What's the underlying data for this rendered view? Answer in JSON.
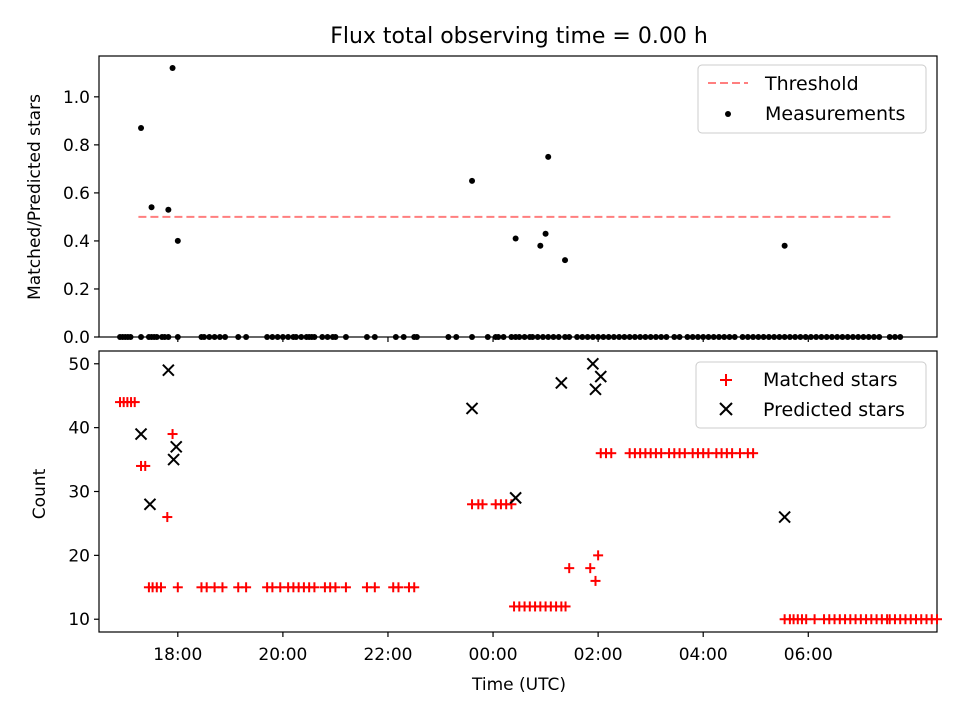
{
  "chart_data": [
    {
      "type": "scatter",
      "title": "Flux total observing time = 0.00 h",
      "xlabel": "",
      "ylabel": "Matched/Predicted stars",
      "xlim": [
        16.5,
        32.45
      ],
      "ylim": [
        0,
        1.17
      ],
      "yticks": [
        0.0,
        0.2,
        0.4,
        0.6,
        0.8,
        1.0
      ],
      "ytick_labels": [
        "0.0",
        "0.2",
        "0.4",
        "0.6",
        "0.8",
        "1.0"
      ],
      "xticks": [
        18,
        20,
        22,
        24,
        26,
        28,
        30
      ],
      "legend": [
        "Threshold",
        "Measurements"
      ],
      "legend_position": "top-right",
      "threshold": {
        "name": "Threshold",
        "y": 0.5,
        "x": [
          17.25,
          31.6
        ],
        "color": "#ff7f7f",
        "style": "dashed"
      },
      "series": [
        {
          "name": "Measurements",
          "color": "#000000",
          "x": [
            17.3,
            17.5,
            17.82,
            17.9,
            18.0,
            23.6,
            24.43,
            24.9,
            25.37,
            25.0,
            25.05,
            29.55
          ],
          "y": [
            0.87,
            0.54,
            0.53,
            1.12,
            0.4,
            0.65,
            0.41,
            0.38,
            0.32,
            0.43,
            0.75,
            0.38
          ]
        },
        {
          "name": "Measurements",
          "color": "#000000",
          "x": [
            16.9,
            16.95,
            17.0,
            17.05,
            17.1,
            17.3,
            17.45,
            17.5,
            17.55,
            17.6,
            17.7,
            17.75,
            17.82,
            18.0,
            18.45,
            18.5,
            18.6,
            18.7,
            18.8,
            18.9,
            19.15,
            19.3,
            19.7,
            19.8,
            19.9,
            20.0,
            20.1,
            20.2,
            20.25,
            20.35,
            20.45,
            20.5,
            20.55,
            20.6,
            20.75,
            20.85,
            20.95,
            21.0,
            21.2,
            21.6,
            21.75,
            22.15,
            22.3,
            22.5,
            22.55,
            23.15,
            23.3,
            23.6,
            23.9,
            24.05,
            24.1,
            24.2,
            24.35,
            24.43,
            24.5,
            24.6,
            24.7,
            24.75,
            24.85,
            24.95,
            25.05,
            25.15,
            25.25,
            25.37,
            25.45,
            25.6,
            25.7,
            25.8,
            25.9,
            26.0,
            26.1,
            26.2,
            26.3,
            26.4,
            26.5,
            26.6,
            26.7,
            26.8,
            26.9,
            27.0,
            27.1,
            27.2,
            27.3,
            27.45,
            27.55,
            27.7,
            27.8,
            27.9,
            28.0,
            28.1,
            28.2,
            28.3,
            28.4,
            28.5,
            28.6,
            28.75,
            28.85,
            28.95,
            29.05,
            29.15,
            29.25,
            29.35,
            29.45,
            29.55,
            29.65,
            29.75,
            29.85,
            29.95,
            30.05,
            30.15,
            30.25,
            30.35,
            30.45,
            30.55,
            30.65,
            30.75,
            30.85,
            30.95,
            31.05,
            31.15,
            31.25,
            31.35,
            31.55,
            31.65,
            31.75
          ],
          "y_value": 0.0
        }
      ]
    },
    {
      "type": "scatter",
      "title": "",
      "xlabel": "Time (UTC)",
      "ylabel": "Count",
      "xlim": [
        16.5,
        32.45
      ],
      "ylim": [
        8,
        52
      ],
      "yticks": [
        10,
        20,
        30,
        40,
        50
      ],
      "ytick_labels": [
        "10",
        "20",
        "30",
        "40",
        "50"
      ],
      "xticks": [
        18,
        20,
        22,
        24,
        26,
        28,
        30
      ],
      "xtick_labels": [
        "18:00",
        "20:00",
        "22:00",
        "00:00",
        "02:00",
        "04:00",
        "06:00"
      ],
      "legend": [
        "Matched stars",
        "Predicted stars"
      ],
      "legend_position": "top-right",
      "series": [
        {
          "name": "Matched stars",
          "marker": "+",
          "color": "#ff0000",
          "points": [
            [
              16.9,
              44
            ],
            [
              16.97,
              44
            ],
            [
              17.04,
              44
            ],
            [
              17.11,
              44
            ],
            [
              17.18,
              44
            ],
            [
              17.3,
              34
            ],
            [
              17.38,
              34
            ],
            [
              17.8,
              26
            ],
            [
              17.9,
              39
            ],
            [
              17.45,
              15
            ],
            [
              17.52,
              15
            ],
            [
              17.6,
              15
            ],
            [
              17.68,
              15
            ],
            [
              18.0,
              15
            ],
            [
              18.45,
              15
            ],
            [
              18.55,
              15
            ],
            [
              18.7,
              15
            ],
            [
              18.85,
              15
            ],
            [
              19.15,
              15
            ],
            [
              19.3,
              15
            ],
            [
              19.7,
              15
            ],
            [
              19.8,
              15
            ],
            [
              19.95,
              15
            ],
            [
              20.1,
              15
            ],
            [
              20.2,
              15
            ],
            [
              20.3,
              15
            ],
            [
              20.4,
              15
            ],
            [
              20.5,
              15
            ],
            [
              20.6,
              15
            ],
            [
              20.8,
              15
            ],
            [
              20.9,
              15
            ],
            [
              21.0,
              15
            ],
            [
              21.2,
              15
            ],
            [
              21.6,
              15
            ],
            [
              21.75,
              15
            ],
            [
              22.1,
              15
            ],
            [
              22.2,
              15
            ],
            [
              22.4,
              15
            ],
            [
              22.5,
              15
            ],
            [
              23.6,
              28
            ],
            [
              23.72,
              28
            ],
            [
              23.8,
              28
            ],
            [
              24.05,
              28
            ],
            [
              24.15,
              28
            ],
            [
              24.25,
              28
            ],
            [
              24.35,
              28
            ],
            [
              24.4,
              12
            ],
            [
              24.5,
              12
            ],
            [
              24.6,
              12
            ],
            [
              24.7,
              12
            ],
            [
              24.8,
              12
            ],
            [
              24.9,
              12
            ],
            [
              25.0,
              12
            ],
            [
              25.1,
              12
            ],
            [
              25.2,
              12
            ],
            [
              25.3,
              12
            ],
            [
              25.38,
              12
            ],
            [
              25.45,
              18
            ],
            [
              25.85,
              18
            ],
            [
              25.95,
              16
            ],
            [
              26.0,
              20
            ],
            [
              26.05,
              36
            ],
            [
              26.15,
              36
            ],
            [
              26.25,
              36
            ],
            [
              26.6,
              36
            ],
            [
              26.7,
              36
            ],
            [
              26.8,
              36
            ],
            [
              26.9,
              36
            ],
            [
              27.0,
              36
            ],
            [
              27.1,
              36
            ],
            [
              27.2,
              36
            ],
            [
              27.35,
              36
            ],
            [
              27.45,
              36
            ],
            [
              27.55,
              36
            ],
            [
              27.65,
              36
            ],
            [
              27.8,
              36
            ],
            [
              27.9,
              36
            ],
            [
              28.0,
              36
            ],
            [
              28.1,
              36
            ],
            [
              28.25,
              36
            ],
            [
              28.35,
              36
            ],
            [
              28.45,
              36
            ],
            [
              28.55,
              36
            ],
            [
              28.7,
              36
            ],
            [
              28.85,
              36
            ],
            [
              28.95,
              36
            ],
            [
              29.55,
              10
            ],
            [
              29.65,
              10
            ],
            [
              29.72,
              10
            ],
            [
              29.8,
              10
            ],
            [
              29.88,
              10
            ],
            [
              29.96,
              10
            ],
            [
              30.3,
              10
            ],
            [
              30.4,
              10
            ],
            [
              30.5,
              10
            ],
            [
              30.6,
              10
            ],
            [
              30.7,
              10
            ],
            [
              30.8,
              10
            ],
            [
              30.9,
              10
            ],
            [
              31.0,
              10
            ],
            [
              31.1,
              10
            ],
            [
              31.2,
              10
            ],
            [
              31.3,
              10
            ],
            [
              31.4,
              10
            ],
            [
              31.55,
              10
            ],
            [
              31.65,
              10
            ],
            [
              31.75,
              10
            ],
            [
              31.85,
              10
            ],
            [
              31.95,
              10
            ],
            [
              32.05,
              10
            ],
            [
              32.15,
              10
            ],
            [
              32.25,
              10
            ],
            [
              32.35,
              10
            ],
            [
              30.12,
              10
            ],
            [
              31.5,
              10
            ],
            [
              32.45,
              10
            ]
          ]
        },
        {
          "name": "Predicted stars",
          "marker": "x",
          "color": "#000000",
          "points": [
            [
              17.3,
              39
            ],
            [
              17.47,
              28
            ],
            [
              17.82,
              49
            ],
            [
              17.92,
              35
            ],
            [
              17.97,
              37
            ],
            [
              23.6,
              43
            ],
            [
              24.43,
              29
            ],
            [
              25.3,
              47
            ],
            [
              25.9,
              50
            ],
            [
              25.95,
              46
            ],
            [
              26.05,
              48
            ],
            [
              29.55,
              26
            ]
          ]
        }
      ]
    }
  ]
}
